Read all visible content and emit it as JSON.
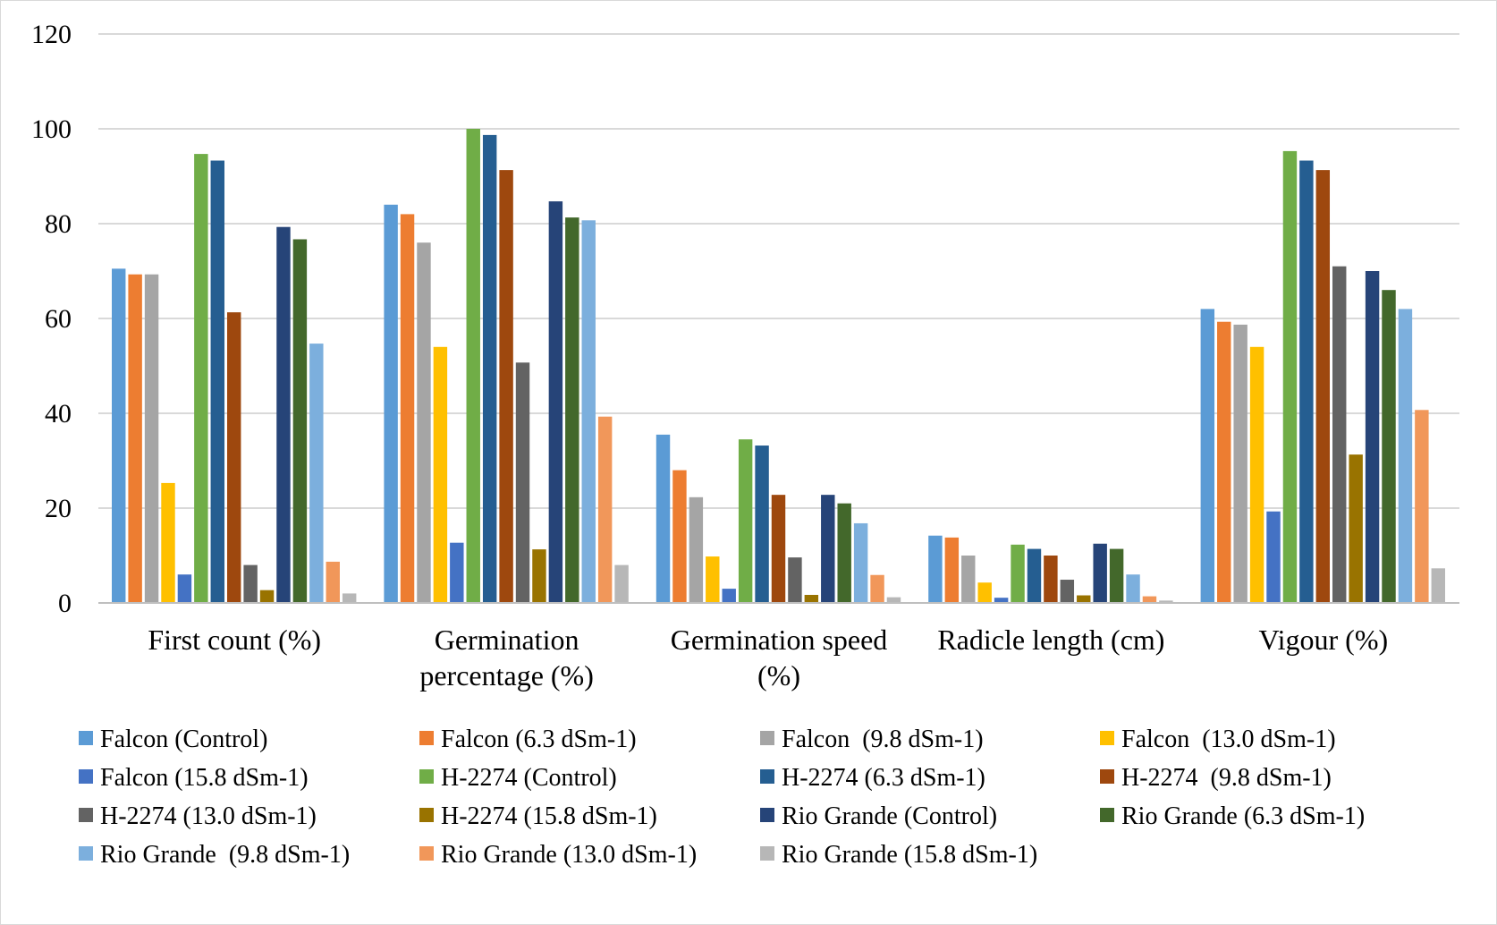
{
  "chart_data": {
    "type": "bar",
    "title": "",
    "xlabel": "",
    "ylabel": "",
    "ylim": [
      0,
      120
    ],
    "yticks": [
      0,
      20,
      40,
      60,
      80,
      100,
      120
    ],
    "grid": true,
    "legend_position": "bottom",
    "categories": [
      [
        "First count (%)"
      ],
      [
        "Germination",
        "percentage (%)"
      ],
      [
        "Germination speed",
        "(%)"
      ],
      [
        "Radicle length (cm)"
      ],
      [
        "Vigour (%)"
      ]
    ],
    "series": [
      {
        "name": "Falcon (Control)",
        "color": "#5b9bd5",
        "values": [
          70.5,
          84,
          35.5,
          14.2,
          62
        ]
      },
      {
        "name": "Falcon (6.3 dSm-1)",
        "color": "#ed7d31",
        "values": [
          69.3,
          82,
          28,
          13.8,
          59.3
        ]
      },
      {
        "name": "Falcon  (9.8 dSm-1)",
        "color": "#a5a5a5",
        "values": [
          69.3,
          76,
          22.3,
          10,
          58.7
        ]
      },
      {
        "name": "Falcon  (13.0 dSm-1)",
        "color": "#ffc000",
        "values": [
          25.3,
          54,
          9.8,
          4.3,
          54
        ]
      },
      {
        "name": "Falcon (15.8 dSm-1)",
        "color": "#4472c4",
        "values": [
          6,
          12.7,
          3,
          1.1,
          19.3
        ]
      },
      {
        "name": "H-2274 (Control)",
        "color": "#70ad47",
        "values": [
          94.7,
          100,
          34.5,
          12.3,
          95.3
        ]
      },
      {
        "name": "H-2274 (6.3 dSm-1)",
        "color": "#255e91",
        "values": [
          93.3,
          98.7,
          33.2,
          11.4,
          93.3
        ]
      },
      {
        "name": "H-2274  (9.8 dSm-1)",
        "color": "#9e480e",
        "values": [
          61.3,
          91.3,
          22.8,
          10,
          91.3
        ]
      },
      {
        "name": "H-2274 (13.0 dSm-1)",
        "color": "#636363",
        "values": [
          8,
          50.7,
          9.6,
          4.9,
          71
        ]
      },
      {
        "name": "H-2274 (15.8 dSm-1)",
        "color": "#997300",
        "values": [
          2.7,
          11.3,
          1.7,
          1.6,
          31.3
        ]
      },
      {
        "name": "Rio Grande (Control)",
        "color": "#264478",
        "values": [
          79.3,
          84.7,
          22.8,
          12.5,
          70
        ]
      },
      {
        "name": "Rio Grande (6.3 dSm-1)",
        "color": "#43682b",
        "values": [
          76.7,
          81.3,
          21,
          11.4,
          66
        ]
      },
      {
        "name": "Rio Grande  (9.8 dSm-1)",
        "color": "#7cafdd",
        "values": [
          54.7,
          80.7,
          16.8,
          6,
          62
        ]
      },
      {
        "name": "Rio Grande (13.0 dSm-1)",
        "color": "#f1975a",
        "values": [
          8.7,
          39.3,
          5.9,
          1.4,
          40.7
        ]
      },
      {
        "name": "Rio Grande (15.8 dSm-1)",
        "color": "#b7b7b7",
        "values": [
          2,
          8,
          1.2,
          0.5,
          7.3
        ]
      }
    ]
  }
}
